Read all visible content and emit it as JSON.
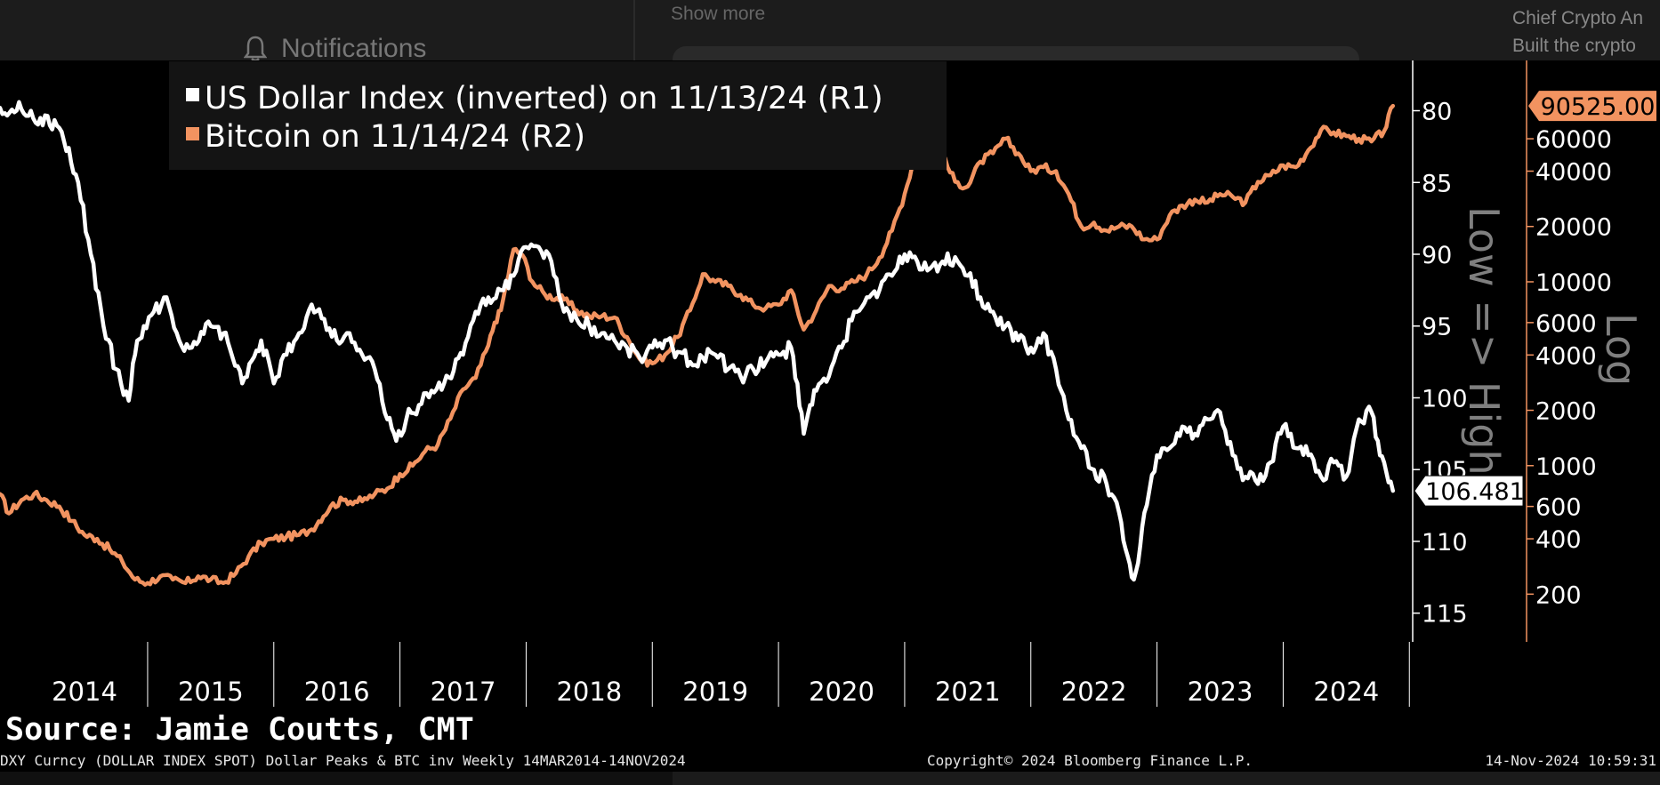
{
  "background_ui": {
    "notifications_label": "Notifications",
    "show_more_label": "Show more",
    "author_line_1": "Chief Crypto An",
    "author_line_2": "Built the crypto"
  },
  "chart_data": {
    "type": "line",
    "x_range": [
      2013.83,
      2024.97
    ],
    "x_tick_labels": [
      "2014",
      "2015",
      "2016",
      "2017",
      "2018",
      "2019",
      "2020",
      "2021",
      "2022",
      "2023",
      "2024"
    ],
    "legend": [
      {
        "label": "US Dollar Index (inverted) on 11/13/24 (R1)",
        "color": "#ffffff"
      },
      {
        "label": "Bitcoin on 11/14/24 (R2)",
        "color": "#f29360"
      }
    ],
    "axis_r1": {
      "inverted": true,
      "range": [
        76.5,
        117
      ],
      "ticks": [
        80,
        85,
        90,
        95,
        100,
        105,
        110,
        115
      ],
      "tick_labels": [
        "80",
        "85",
        "90",
        "95",
        "100",
        "105",
        "110",
        "115"
      ],
      "annotation": "Low => High",
      "last_value_label": "106.481",
      "last_value": 106.481
    },
    "axis_r2": {
      "scale": "log",
      "range": [
        110,
        160000
      ],
      "ticks": [
        200,
        400,
        600,
        1000,
        2000,
        4000,
        6000,
        10000,
        20000,
        40000,
        60000
      ],
      "tick_labels": [
        "200",
        "400",
        "600",
        "1000",
        "2000",
        "4000",
        "6000",
        "10000",
        "20000",
        "40000",
        "60000"
      ],
      "annotation": "Log",
      "last_value_label": "90525.00",
      "last_value": 90525
    },
    "series": [
      {
        "name": "US Dollar Index (inverted)",
        "axis": "R1",
        "color": "#ffffff",
        "x": [
          2013.83,
          2014.0,
          2014.15,
          2014.3,
          2014.45,
          2014.55,
          2014.65,
          2014.75,
          2014.85,
          2014.9,
          2014.97,
          2015.05,
          2015.15,
          2015.25,
          2015.35,
          2015.5,
          2015.6,
          2015.75,
          2015.9,
          2016.0,
          2016.1,
          2016.2,
          2016.3,
          2016.4,
          2016.5,
          2016.6,
          2016.7,
          2016.8,
          2016.9,
          2016.97,
          2017.05,
          2017.15,
          2017.25,
          2017.35,
          2017.5,
          2017.6,
          2017.7,
          2017.8,
          2017.9,
          2018.0,
          2018.1,
          2018.2,
          2018.3,
          2018.4,
          2018.5,
          2018.6,
          2018.7,
          2018.8,
          2018.9,
          2019.0,
          2019.1,
          2019.2,
          2019.3,
          2019.4,
          2019.5,
          2019.6,
          2019.7,
          2019.8,
          2019.9,
          2020.0,
          2020.1,
          2020.15,
          2020.2,
          2020.25,
          2020.3,
          2020.4,
          2020.5,
          2020.6,
          2020.7,
          2020.8,
          2020.9,
          2021.0,
          2021.1,
          2021.2,
          2021.3,
          2021.4,
          2021.5,
          2021.6,
          2021.7,
          2021.8,
          2021.9,
          2022.0,
          2022.1,
          2022.2,
          2022.3,
          2022.4,
          2022.5,
          2022.6,
          2022.7,
          2022.75,
          2022.8,
          2022.85,
          2022.9,
          2023.0,
          2023.1,
          2023.2,
          2023.3,
          2023.4,
          2023.5,
          2023.6,
          2023.7,
          2023.8,
          2023.9,
          2024.0,
          2024.1,
          2024.2,
          2024.3,
          2024.4,
          2024.5,
          2024.6,
          2024.7,
          2024.75,
          2024.8,
          2024.87
        ],
        "y": [
          79.8,
          79.9,
          80.5,
          81.2,
          85.0,
          90.0,
          95.0,
          98.0,
          100.2,
          97.0,
          95.0,
          94.0,
          93.0,
          96.0,
          96.5,
          95.0,
          95.5,
          99.0,
          96.0,
          99.0,
          97.0,
          95.5,
          93.5,
          94.5,
          96.0,
          95.5,
          97.0,
          98.0,
          101.5,
          103.0,
          101.5,
          100.5,
          99.5,
          99.0,
          97.0,
          94.0,
          93.0,
          92.5,
          91.5,
          89.5,
          89.5,
          90.5,
          94.0,
          94.5,
          95.0,
          95.5,
          96.0,
          96.5,
          97.2,
          96.5,
          96.0,
          96.8,
          97.5,
          97.2,
          97.0,
          98.0,
          98.5,
          98.0,
          97.5,
          97.0,
          96.5,
          99.0,
          102.5,
          100.5,
          99.5,
          98.5,
          96.5,
          94.0,
          93.0,
          92.5,
          91.5,
          90.0,
          90.5,
          91.0,
          90.5,
          90.2,
          91.5,
          93.0,
          94.0,
          95.0,
          96.0,
          96.5,
          95.5,
          98.0,
          101.5,
          103.5,
          105.0,
          106.0,
          108.0,
          110.5,
          112.5,
          111.5,
          108.0,
          104.0,
          103.5,
          102.0,
          102.5,
          101.5,
          101.0,
          104.0,
          105.5,
          106.0,
          104.5,
          102.0,
          103.5,
          104.0,
          105.5,
          104.5,
          105.5,
          101.5,
          101.0,
          103.0,
          104.5,
          106.481
        ]
      },
      {
        "name": "Bitcoin",
        "axis": "R2",
        "color": "#f29360",
        "x": [
          2013.83,
          2013.9,
          2014.0,
          2014.1,
          2014.2,
          2014.3,
          2014.4,
          2014.5,
          2014.6,
          2014.7,
          2014.8,
          2014.9,
          2015.0,
          2015.1,
          2015.2,
          2015.3,
          2015.4,
          2015.5,
          2015.6,
          2015.7,
          2015.8,
          2015.9,
          2016.0,
          2016.1,
          2016.2,
          2016.3,
          2016.45,
          2016.55,
          2016.7,
          2016.8,
          2016.9,
          2017.0,
          2017.1,
          2017.2,
          2017.3,
          2017.4,
          2017.5,
          2017.6,
          2017.7,
          2017.75,
          2017.8,
          2017.9,
          2017.97,
          2018.05,
          2018.15,
          2018.3,
          2018.4,
          2018.5,
          2018.6,
          2018.7,
          2018.8,
          2018.9,
          2019.0,
          2019.1,
          2019.2,
          2019.3,
          2019.4,
          2019.5,
          2019.6,
          2019.7,
          2019.8,
          2019.9,
          2020.0,
          2020.1,
          2020.2,
          2020.3,
          2020.4,
          2020.5,
          2020.6,
          2020.7,
          2020.8,
          2020.9,
          2021.0,
          2021.1,
          2021.2,
          2021.3,
          2021.4,
          2021.5,
          2021.6,
          2021.7,
          2021.8,
          2021.9,
          2022.0,
          2022.1,
          2022.2,
          2022.3,
          2022.4,
          2022.5,
          2022.6,
          2022.7,
          2022.8,
          2022.9,
          2023.0,
          2023.1,
          2023.2,
          2023.3,
          2023.4,
          2023.5,
          2023.6,
          2023.7,
          2023.8,
          2023.9,
          2024.0,
          2024.1,
          2024.2,
          2024.3,
          2024.4,
          2024.5,
          2024.6,
          2024.7,
          2024.8,
          2024.87
        ],
        "y": [
          700,
          550,
          650,
          700,
          650,
          600,
          500,
          420,
          400,
          350,
          300,
          240,
          230,
          250,
          240,
          230,
          250,
          240,
          230,
          260,
          320,
          380,
          400,
          410,
          420,
          450,
          600,
          650,
          640,
          700,
          750,
          900,
          1000,
          1200,
          1300,
          1800,
          2600,
          3000,
          4500,
          6000,
          7000,
          15000,
          14000,
          10000,
          8500,
          8000,
          7000,
          6500,
          6500,
          6400,
          5000,
          3800,
          3600,
          4000,
          5000,
          7000,
          11000,
          10000,
          9500,
          8500,
          7500,
          7200,
          7500,
          9000,
          5500,
          7000,
          9500,
          9200,
          10000,
          11000,
          13500,
          19000,
          30000,
          55000,
          58000,
          48000,
          35000,
          33000,
          45000,
          50000,
          60000,
          50000,
          40000,
          42000,
          40000,
          30000,
          20000,
          21000,
          19000,
          20000,
          20000,
          17000,
          17000,
          23000,
          26000,
          28000,
          27000,
          30000,
          29000,
          27000,
          35000,
          38000,
          43000,
          42000,
          52000,
          67000,
          65000,
          62000,
          60000,
          58000,
          66000,
          90525
        ]
      }
    ]
  },
  "source_label": "Source: Jamie Coutts, CMT",
  "footer": {
    "left": "DXY Curncy (DOLLAR INDEX SPOT) Dollar Peaks & BTC inv  Weekly 14MAR2014-14NOV2024",
    "center": "Copyright© 2024 Bloomberg Finance L.P.",
    "right": "14-Nov-2024 10:59:31"
  }
}
